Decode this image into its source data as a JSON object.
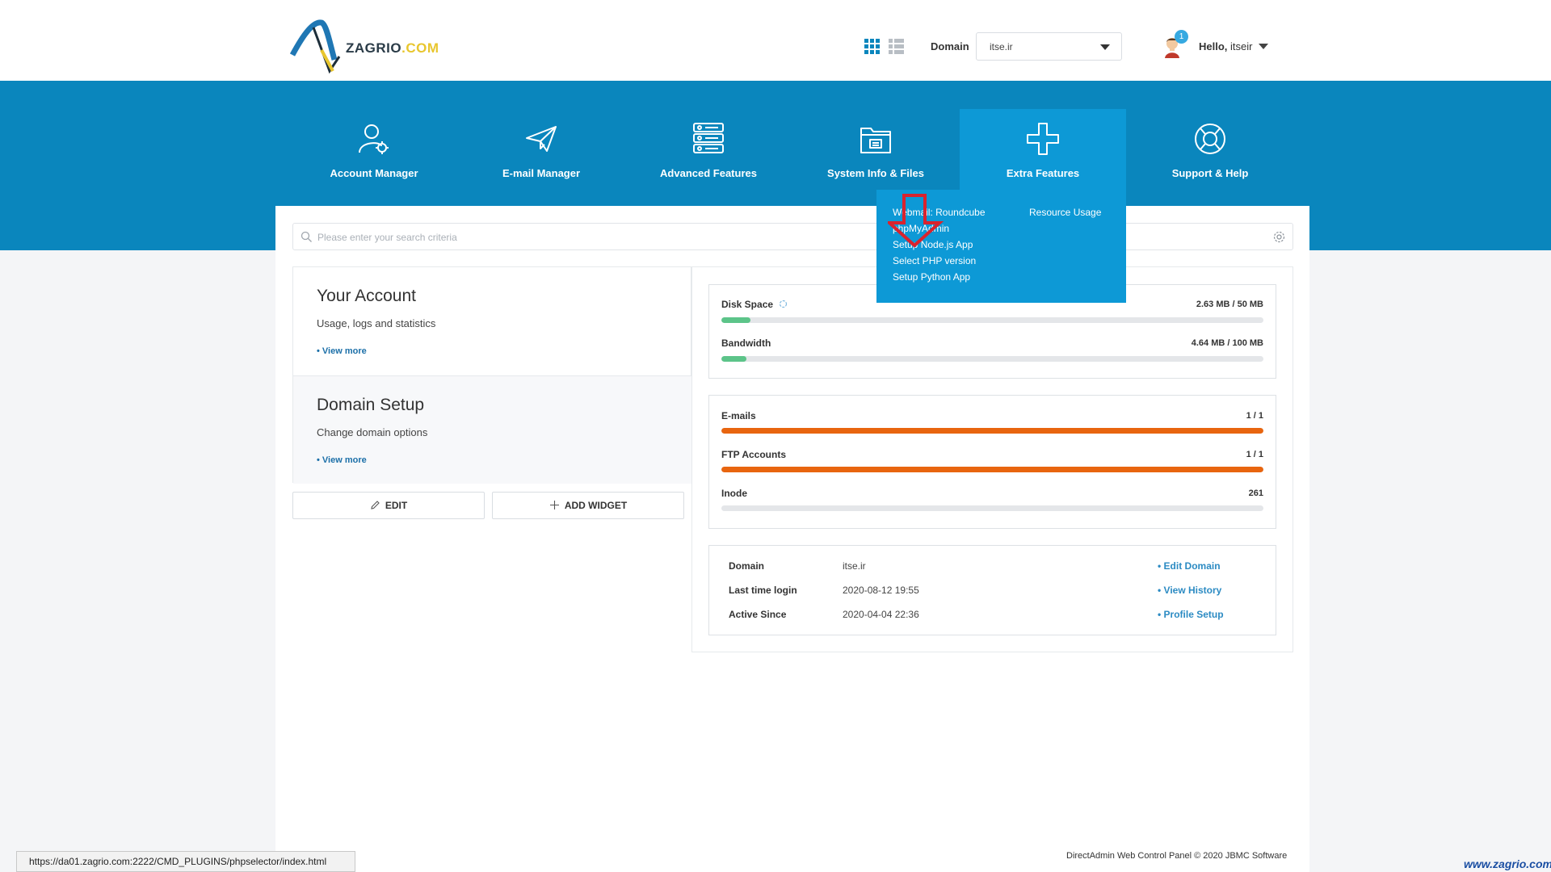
{
  "header": {
    "logo": {
      "text_a": "ZAGRIO",
      "text_b": ".COM"
    },
    "domain_label": "Domain",
    "domain_value": "itse.ir",
    "notification_count": "1",
    "hello_prefix": "Hello,",
    "username": "itseir"
  },
  "nav": [
    {
      "label": "Account Manager",
      "icon": "account-gear-icon"
    },
    {
      "label": "E-mail Manager",
      "icon": "paper-plane-icon"
    },
    {
      "label": "Advanced Features",
      "icon": "server-icon"
    },
    {
      "label": "System Info & Files",
      "icon": "folder-icon"
    },
    {
      "label": "Extra Features",
      "icon": "plus-icon",
      "active": true
    },
    {
      "label": "Support & Help",
      "icon": "lifebuoy-icon"
    }
  ],
  "extra_menu": {
    "col1": [
      "Webmail: Roundcube",
      "phpMyAdmin",
      "Setup Node.js App",
      "Select PHP version",
      "Setup Python App"
    ],
    "col2": [
      "Resource Usage"
    ]
  },
  "search": {
    "placeholder": "Please enter your search criteria"
  },
  "widgets": {
    "account": {
      "title": "Your Account",
      "subtitle": "Usage, logs and statistics",
      "more": "• View more"
    },
    "domain": {
      "title": "Domain Setup",
      "subtitle": "Change domain options",
      "more": "• View more"
    }
  },
  "buttons": {
    "edit": "EDIT",
    "add_widget": "ADD WIDGET"
  },
  "usage": {
    "disk": {
      "label": "Disk Space",
      "value": "2.63 MB / 50 MB",
      "fraction": 0.053
    },
    "bandwidth": {
      "label": "Bandwidth",
      "value": "4.64 MB / 100 MB",
      "fraction": 0.046
    }
  },
  "counts": {
    "emails": {
      "label": "E-mails",
      "value": "1 / 1",
      "fraction": 1.0
    },
    "ftp": {
      "label": "FTP Accounts",
      "value": "1 / 1",
      "fraction": 1.0
    },
    "inode": {
      "label": "Inode",
      "value": "261",
      "fraction": 0
    }
  },
  "info": {
    "domain": {
      "label": "Domain",
      "value": "itse.ir",
      "link": "• Edit Domain"
    },
    "last_login": {
      "label": "Last time login",
      "value": "2020-08-12 19:55",
      "link": "• View History"
    },
    "active_since": {
      "label": "Active Since",
      "value": "2020-04-04 22:36",
      "link": "• Profile Setup"
    }
  },
  "footer": "DirectAdmin Web Control Panel © 2020 JBMC Software",
  "status_url": "https://da01.zagrio.com:2222/CMD_PLUGINS/phpselector/index.html",
  "watermark": "www.zagrio.com",
  "colors": {
    "brand_blue": "#0a86bd",
    "active_blue": "#0d99d6",
    "green": "#5cc489",
    "orange": "#e8650f",
    "arrow_red": "#d9232e"
  }
}
